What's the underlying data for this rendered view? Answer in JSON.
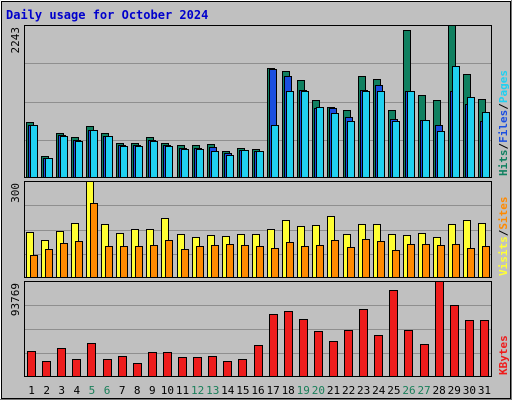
{
  "chart_data": {
    "type": "bar",
    "title": "Daily usage for October 2024",
    "categories": [
      "1",
      "2",
      "3",
      "4",
      "5",
      "6",
      "7",
      "8",
      "9",
      "10",
      "11",
      "12",
      "13",
      "14",
      "15",
      "16",
      "17",
      "18",
      "19",
      "20",
      "21",
      "22",
      "23",
      "24",
      "25",
      "26",
      "27",
      "28",
      "29",
      "30",
      "31"
    ],
    "weekend_days": [
      "5",
      "6",
      "12",
      "13",
      "19",
      "20",
      "26",
      "27"
    ],
    "colors": {
      "title": "#0000cc",
      "weekday_label": "#000000",
      "weekend_label": "#1a7f5a",
      "hits": "#108060",
      "files": "#1a4ee0",
      "pages": "#20d0f0",
      "visits": "#ffff33",
      "sites": "#ff8a00",
      "kbytes": "#ee1c1c",
      "panel_bg": "#c0c0c0",
      "grid": "#8f8f8f"
    },
    "panels": [
      {
        "id": "requests",
        "ymax_label": "2243",
        "ylim": [
          0,
          2243
        ],
        "legend": [
          {
            "text": "Hits",
            "color": "#108060"
          },
          {
            "text": "/",
            "color": "#000000"
          },
          {
            "text": "Files",
            "color": "#1a4ee0"
          },
          {
            "text": "/",
            "color": "#000000"
          },
          {
            "text": "Pages",
            "color": "#20d0f0"
          }
        ],
        "series": [
          {
            "name": "Hits",
            "color": "#108060",
            "values": [
              817,
              327,
              665,
              600,
              758,
              665,
              517,
              517,
              594,
              517,
              478,
              478,
              499,
              393,
              441,
              432,
              1614,
              1562,
              1440,
              1142,
              1042,
              990,
              1498,
              1456,
              1000,
              2174,
              1220,
              1150,
              2243,
              1520,
              1160
            ]
          },
          {
            "name": "Files",
            "color": "#1a4ee0",
            "values": [
              780,
              300,
              630,
              560,
              700,
              620,
              485,
              485,
              560,
              480,
              445,
              445,
              450,
              360,
              410,
              400,
              1600,
              1490,
              1290,
              1025,
              1020,
              900,
              1290,
              1360,
              860,
              1270,
              850,
              770,
              1270,
              1080,
              830
            ]
          },
          {
            "name": "Pages",
            "color": "#20d0f0",
            "values": [
              780,
              300,
              610,
              540,
              700,
              620,
              470,
              470,
              545,
              470,
              430,
              430,
              390,
              340,
              410,
              400,
              770,
              1280,
              1270,
              1040,
              950,
              840,
              1280,
              1280,
              830,
              1270,
              850,
              690,
              1640,
              1190,
              970
            ]
          }
        ]
      },
      {
        "id": "visitors",
        "ymax_label": "300",
        "ylim": [
          0,
          300
        ],
        "legend": [
          {
            "text": "Visits",
            "color": "#ffff33"
          },
          {
            "text": "/",
            "color": "#000000"
          },
          {
            "text": "Sites",
            "color": "#ff8a00"
          }
        ],
        "series": [
          {
            "name": "Visits",
            "color": "#ffff33",
            "values": [
              142,
              118,
              145,
              170,
              300,
              168,
              138,
              150,
              152,
              185,
              135,
              127,
              132,
              130,
              135,
              137,
              150,
              178,
              162,
              165,
              193,
              137,
              167,
              168,
              135,
              132,
              140,
              127,
              167,
              178,
              170
            ]
          },
          {
            "name": "Sites",
            "color": "#ff8a00",
            "values": [
              72,
              90,
              108,
              115,
              232,
              100,
              98,
              98,
              102,
              117,
              90,
              100,
              103,
              105,
              103,
              100,
              92,
              110,
              100,
              102,
              118,
              95,
              120,
              115,
              88,
              105,
              105,
              103,
              105,
              92,
              100
            ]
          }
        ]
      },
      {
        "id": "volume",
        "ymax_label": "93769",
        "ylim": [
          0,
          93769
        ],
        "legend": [
          {
            "text": "KBytes",
            "color": "#ee1c1c"
          }
        ],
        "series": [
          {
            "name": "KBytes",
            "color": "#ee1c1c",
            "values": [
              25000,
              16000,
              28000,
              18000,
              33000,
              18000,
              21000,
              14000,
              24000,
              24000,
              20000,
              20000,
              21000,
              16000,
              18000,
              31000,
              62000,
              64000,
              57000,
              45000,
              35000,
              46000,
              66000,
              41000,
              85000,
              46000,
              32000,
              93769,
              70000,
              56000,
              56000
            ]
          }
        ]
      }
    ]
  }
}
